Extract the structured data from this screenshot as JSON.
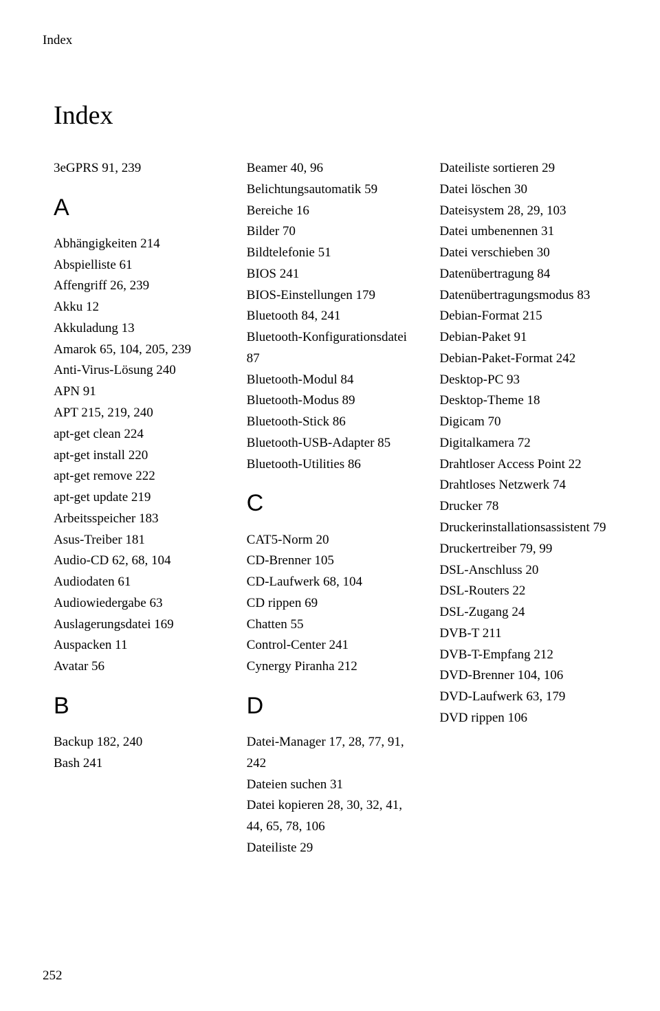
{
  "runningHead": "Index",
  "title": "Index",
  "pageNumber": "252",
  "col1": {
    "pre": [
      "3eGPRS  91, 239"
    ],
    "A": [
      "Abhängigkeiten  214",
      "Abspielliste  61",
      "Affengriff  26, 239",
      "Akku  12",
      "Akkuladung  13",
      "Amarok  65, 104, 205, 239",
      "Anti-Virus-Lösung  240",
      "APN  91",
      "APT  215, 219, 240",
      "apt-get clean  224",
      "apt-get install  220",
      "apt-get remove  222",
      "apt-get update  219",
      "Arbeitsspeicher  183",
      "Asus-Treiber  181",
      "Audio-CD  62, 68, 104",
      "Audiodaten  61",
      "Audiowiedergabe  63",
      "Auslagerungsdatei  169",
      "Auspacken  11",
      "Avatar  56"
    ],
    "B": [
      "Backup  182, 240",
      "Bash  241"
    ]
  },
  "col2": {
    "Bcont": [
      "Beamer  40, 96",
      "Belichtungsautomatik  59",
      "Bereiche  16",
      "Bilder  70",
      "Bildtelefonie  51",
      "BIOS  241",
      "BIOS-Einstellungen  179",
      "Bluetooth  84, 241",
      "Bluetooth-Konfigurationsdatei  87",
      "Bluetooth-Modul  84",
      "Bluetooth-Modus  89",
      "Bluetooth-Stick  86",
      "Bluetooth-USB-Adapter  85",
      "Bluetooth-Utilities  86"
    ],
    "C": [
      "CAT5-Norm  20",
      "CD-Brenner  105",
      "CD-Laufwerk  68, 104",
      "CD rippen  69",
      "Chatten  55",
      "Control-Center  241",
      "Cynergy Piranha  212"
    ],
    "D": [
      "Datei-Manager  17, 28, 77, 91, 242",
      "Dateien suchen  31",
      "Datei kopieren  28, 30, 32, 41, 44, 65, 78, 106",
      "Dateiliste  29"
    ]
  },
  "col3": {
    "Dcont": [
      "Dateiliste sortieren  29",
      "Datei löschen  30",
      "Dateisystem  28, 29, 103",
      "Datei umbenennen  31",
      "Datei verschieben  30",
      "Datenübertragung  84",
      "Datenübertragungsmodus  83",
      "Debian-Format  215",
      "Debian-Paket  91",
      "Debian-Paket-Format  242",
      "Desktop-PC  93",
      "Desktop-Theme  18",
      "Digicam  70",
      "Digitalkamera  72",
      "Drahtloser Access Point  22",
      "Drahtloses Netzwerk  74",
      "Drucker  78",
      "Druckerinstallationsassistent  79",
      "Druckertreiber  79, 99",
      "DSL-Anschluss  20",
      "DSL-Routers  22",
      "DSL-Zugang  24",
      "DVB-T  211",
      "DVB-T-Empfang  212",
      "DVD-Brenner  104, 106",
      "DVD-Laufwerk  63, 179",
      "DVD rippen  106"
    ]
  },
  "letters": {
    "A": "A",
    "B": "B",
    "C": "C",
    "D": "D"
  }
}
